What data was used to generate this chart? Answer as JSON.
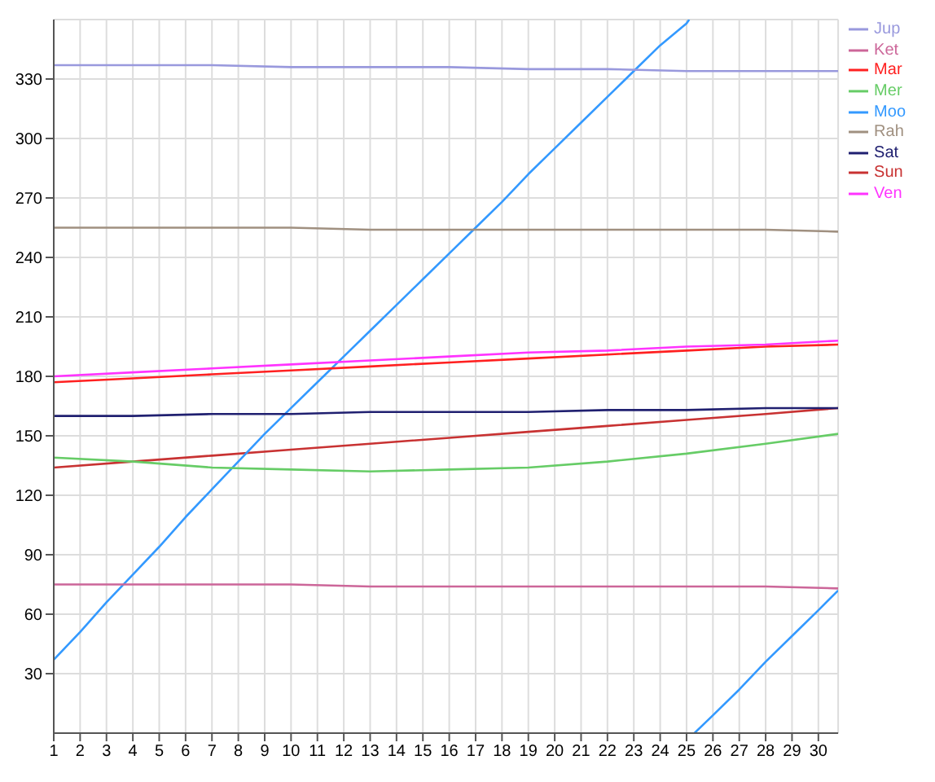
{
  "chart_data": {
    "type": "line",
    "x": [
      1,
      4,
      7,
      10,
      13,
      16,
      19,
      22,
      25,
      28,
      30.75
    ],
    "series": [
      {
        "name": "Sun",
        "color": "#c83232",
        "values": [
          134,
          137,
          140,
          143,
          146,
          149,
          152,
          155,
          158,
          161,
          164
        ]
      },
      {
        "name": "Moo",
        "color": "#3399ff",
        "x": [
          1,
          2,
          3,
          4,
          5,
          6,
          7,
          8,
          9,
          10,
          11,
          12,
          13,
          14,
          15,
          16,
          17,
          18,
          19,
          20,
          21,
          22,
          23,
          24,
          25,
          25.1,
          25.2,
          25.3,
          26,
          27,
          28,
          29,
          30,
          30.75
        ],
        "values": [
          37,
          51,
          66,
          80,
          94,
          109,
          123,
          137,
          151,
          164,
          177,
          190,
          203,
          216,
          229,
          242,
          255,
          268,
          282,
          295,
          308,
          321,
          334,
          347,
          358,
          360,
          null,
          0,
          9,
          22,
          36,
          49,
          62,
          72
        ]
      },
      {
        "name": "Mar",
        "color": "#ff2020",
        "values": [
          177,
          179,
          181,
          183,
          185,
          187,
          189,
          191,
          193,
          195,
          196
        ]
      },
      {
        "name": "Mer",
        "color": "#66cc66",
        "values": [
          139,
          137,
          134,
          133,
          132,
          133,
          134,
          137,
          141,
          146,
          151
        ]
      },
      {
        "name": "Jup",
        "color": "#9999dd",
        "values": [
          337,
          337,
          337,
          336,
          336,
          336,
          335,
          335,
          334,
          334,
          334
        ]
      },
      {
        "name": "Ven",
        "color": "#ff33ff",
        "values": [
          180,
          182,
          184,
          186,
          188,
          190,
          192,
          193,
          195,
          196,
          198
        ]
      },
      {
        "name": "Sat",
        "color": "#202070",
        "values": [
          160,
          160,
          161,
          161,
          162,
          162,
          162,
          163,
          163,
          164,
          164
        ]
      },
      {
        "name": "Rah",
        "color": "#a09080",
        "values": [
          255,
          255,
          255,
          255,
          254,
          254,
          254,
          254,
          254,
          254,
          253
        ]
      },
      {
        "name": "Ket",
        "color": "#cc6699",
        "values": [
          75,
          75,
          75,
          75,
          74,
          74,
          74,
          74,
          74,
          74,
          73
        ]
      }
    ],
    "xlim": [
      1,
      30.75
    ],
    "xticks": [
      1,
      2,
      3,
      4,
      5,
      6,
      7,
      8,
      9,
      10,
      11,
      12,
      13,
      14,
      15,
      16,
      17,
      18,
      19,
      20,
      21,
      22,
      23,
      24,
      25,
      26,
      27,
      28,
      29,
      30
    ],
    "ylim": [
      0,
      360
    ],
    "yticks": [
      30,
      60,
      90,
      120,
      150,
      180,
      210,
      240,
      270,
      300,
      330
    ],
    "grid": true,
    "legend": "top right",
    "marker": "none",
    "line_style": "solid"
  }
}
